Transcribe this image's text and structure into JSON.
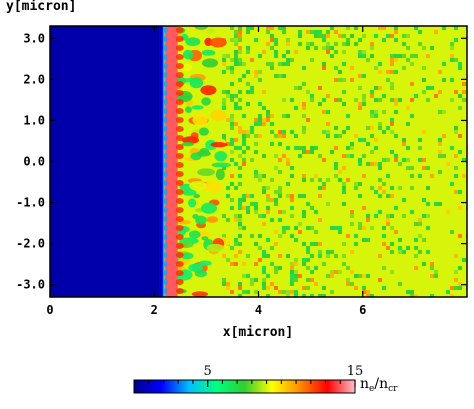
{
  "chart_data": {
    "type": "heatmap",
    "xlabel": "x[micron]",
    "ylabel": "y[micron]",
    "xlim": [
      0,
      8
    ],
    "ylim": [
      -3.3,
      3.3
    ],
    "x_ticks": [
      0,
      2,
      4,
      6
    ],
    "x_tick_labels": [
      "0",
      "2",
      "4",
      "6"
    ],
    "y_ticks": [
      3.0,
      2.0,
      1.0,
      0.0,
      -1.0,
      -2.0,
      -3.0
    ],
    "y_tick_labels": [
      "3.0",
      "2.0",
      "1.0",
      "0.0",
      "-1.0",
      "-2.0",
      "-3.0"
    ],
    "colorbar": {
      "min": 0,
      "max": 15,
      "ticks": [
        5,
        15
      ],
      "tick_labels": [
        "5",
        "15"
      ],
      "label_main": "n",
      "label_sub1": "e",
      "label_sep": "/n",
      "label_sub2": "cr",
      "colors": [
        "#00008b",
        "#0000ff",
        "#00bfff",
        "#00ff7f",
        "#32cd32",
        "#ffff00",
        "#ff8c00",
        "#ff0000",
        "#ffc0cb"
      ]
    },
    "regions": {
      "vacuum": {
        "x": [
          0,
          2.1
        ],
        "value": 0.5
      },
      "target_edge_x": 2.2,
      "overdense_layer": {
        "x": [
          2.2,
          2.45
        ],
        "value": 14
      },
      "modulated_zone": {
        "x": [
          2.45,
          3.3
        ],
        "value_range": [
          6,
          13
        ]
      },
      "background_plasma": {
        "x": [
          3.3,
          8
        ],
        "value": 9
      }
    }
  }
}
